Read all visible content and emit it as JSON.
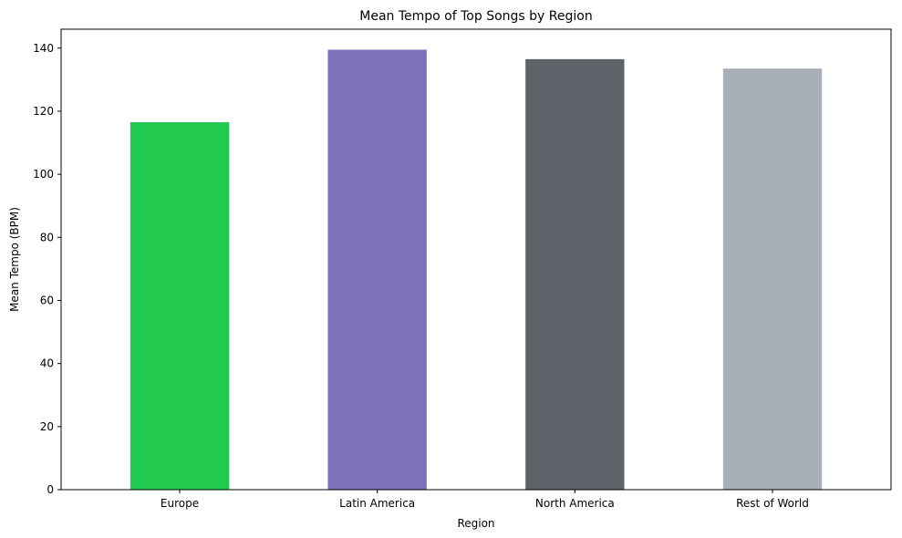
{
  "chart_data": {
    "type": "bar",
    "title": "Mean Tempo of Top Songs by Region",
    "xlabel": "Region",
    "ylabel": "Mean Tempo (BPM)",
    "categories": [
      "Europe",
      "Latin America",
      "North America",
      "Rest of World"
    ],
    "values": [
      116.5,
      139.5,
      136.5,
      133.5
    ],
    "colors": [
      "#22c94f",
      "#7c72b9",
      "#5e636a",
      "#a8afb8"
    ],
    "ylim": [
      0,
      146
    ],
    "yticks": [
      0,
      20,
      40,
      60,
      80,
      100,
      120,
      140
    ],
    "grid": false,
    "legend": "none"
  }
}
